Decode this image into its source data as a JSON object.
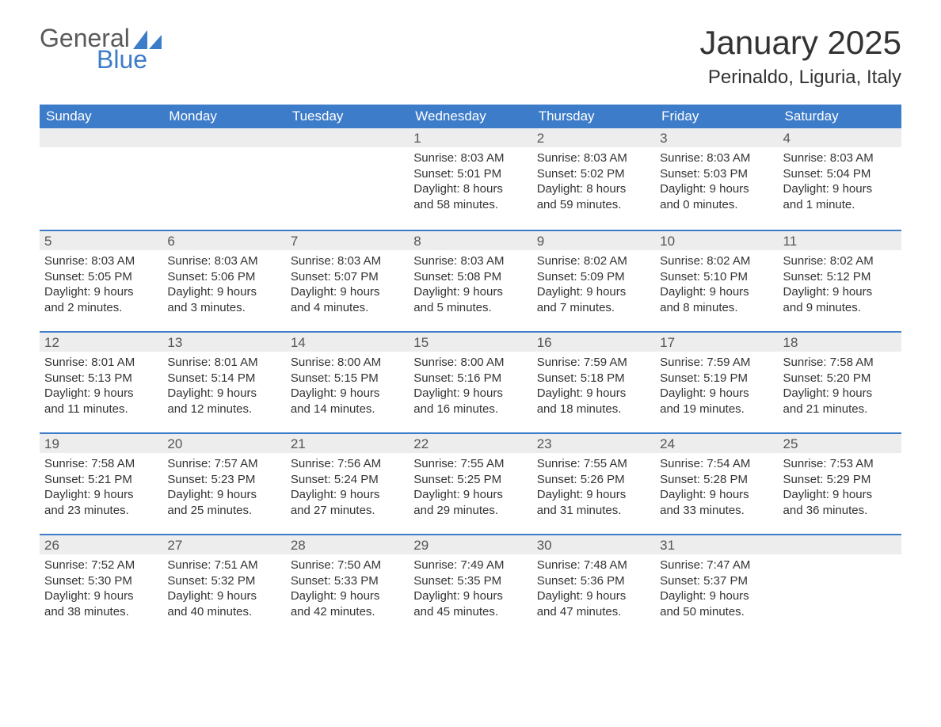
{
  "logo": {
    "text1": "General",
    "text2": "Blue",
    "sail_color": "#3d7cc9",
    "text1_color": "#5a5a5a",
    "text2_color": "#3d7cc9"
  },
  "title": "January 2025",
  "location": "Perinaldo, Liguria, Italy",
  "header_bg": "#3d7cc9",
  "header_text_color": "#ffffff",
  "daynum_bg": "#ededed",
  "week_border_color": "#3d7cc9",
  "background_color": "#ffffff",
  "text_color": "#333333",
  "weekdays": [
    "Sunday",
    "Monday",
    "Tuesday",
    "Wednesday",
    "Thursday",
    "Friday",
    "Saturday"
  ],
  "weeks": [
    [
      null,
      null,
      null,
      {
        "n": "1",
        "sunrise": "Sunrise: 8:03 AM",
        "sunset": "Sunset: 5:01 PM",
        "d1": "Daylight: 8 hours",
        "d2": "and 58 minutes."
      },
      {
        "n": "2",
        "sunrise": "Sunrise: 8:03 AM",
        "sunset": "Sunset: 5:02 PM",
        "d1": "Daylight: 8 hours",
        "d2": "and 59 minutes."
      },
      {
        "n": "3",
        "sunrise": "Sunrise: 8:03 AM",
        "sunset": "Sunset: 5:03 PM",
        "d1": "Daylight: 9 hours",
        "d2": "and 0 minutes."
      },
      {
        "n": "4",
        "sunrise": "Sunrise: 8:03 AM",
        "sunset": "Sunset: 5:04 PM",
        "d1": "Daylight: 9 hours",
        "d2": "and 1 minute."
      }
    ],
    [
      {
        "n": "5",
        "sunrise": "Sunrise: 8:03 AM",
        "sunset": "Sunset: 5:05 PM",
        "d1": "Daylight: 9 hours",
        "d2": "and 2 minutes."
      },
      {
        "n": "6",
        "sunrise": "Sunrise: 8:03 AM",
        "sunset": "Sunset: 5:06 PM",
        "d1": "Daylight: 9 hours",
        "d2": "and 3 minutes."
      },
      {
        "n": "7",
        "sunrise": "Sunrise: 8:03 AM",
        "sunset": "Sunset: 5:07 PM",
        "d1": "Daylight: 9 hours",
        "d2": "and 4 minutes."
      },
      {
        "n": "8",
        "sunrise": "Sunrise: 8:03 AM",
        "sunset": "Sunset: 5:08 PM",
        "d1": "Daylight: 9 hours",
        "d2": "and 5 minutes."
      },
      {
        "n": "9",
        "sunrise": "Sunrise: 8:02 AM",
        "sunset": "Sunset: 5:09 PM",
        "d1": "Daylight: 9 hours",
        "d2": "and 7 minutes."
      },
      {
        "n": "10",
        "sunrise": "Sunrise: 8:02 AM",
        "sunset": "Sunset: 5:10 PM",
        "d1": "Daylight: 9 hours",
        "d2": "and 8 minutes."
      },
      {
        "n": "11",
        "sunrise": "Sunrise: 8:02 AM",
        "sunset": "Sunset: 5:12 PM",
        "d1": "Daylight: 9 hours",
        "d2": "and 9 minutes."
      }
    ],
    [
      {
        "n": "12",
        "sunrise": "Sunrise: 8:01 AM",
        "sunset": "Sunset: 5:13 PM",
        "d1": "Daylight: 9 hours",
        "d2": "and 11 minutes."
      },
      {
        "n": "13",
        "sunrise": "Sunrise: 8:01 AM",
        "sunset": "Sunset: 5:14 PM",
        "d1": "Daylight: 9 hours",
        "d2": "and 12 minutes."
      },
      {
        "n": "14",
        "sunrise": "Sunrise: 8:00 AM",
        "sunset": "Sunset: 5:15 PM",
        "d1": "Daylight: 9 hours",
        "d2": "and 14 minutes."
      },
      {
        "n": "15",
        "sunrise": "Sunrise: 8:00 AM",
        "sunset": "Sunset: 5:16 PM",
        "d1": "Daylight: 9 hours",
        "d2": "and 16 minutes."
      },
      {
        "n": "16",
        "sunrise": "Sunrise: 7:59 AM",
        "sunset": "Sunset: 5:18 PM",
        "d1": "Daylight: 9 hours",
        "d2": "and 18 minutes."
      },
      {
        "n": "17",
        "sunrise": "Sunrise: 7:59 AM",
        "sunset": "Sunset: 5:19 PM",
        "d1": "Daylight: 9 hours",
        "d2": "and 19 minutes."
      },
      {
        "n": "18",
        "sunrise": "Sunrise: 7:58 AM",
        "sunset": "Sunset: 5:20 PM",
        "d1": "Daylight: 9 hours",
        "d2": "and 21 minutes."
      }
    ],
    [
      {
        "n": "19",
        "sunrise": "Sunrise: 7:58 AM",
        "sunset": "Sunset: 5:21 PM",
        "d1": "Daylight: 9 hours",
        "d2": "and 23 minutes."
      },
      {
        "n": "20",
        "sunrise": "Sunrise: 7:57 AM",
        "sunset": "Sunset: 5:23 PM",
        "d1": "Daylight: 9 hours",
        "d2": "and 25 minutes."
      },
      {
        "n": "21",
        "sunrise": "Sunrise: 7:56 AM",
        "sunset": "Sunset: 5:24 PM",
        "d1": "Daylight: 9 hours",
        "d2": "and 27 minutes."
      },
      {
        "n": "22",
        "sunrise": "Sunrise: 7:55 AM",
        "sunset": "Sunset: 5:25 PM",
        "d1": "Daylight: 9 hours",
        "d2": "and 29 minutes."
      },
      {
        "n": "23",
        "sunrise": "Sunrise: 7:55 AM",
        "sunset": "Sunset: 5:26 PM",
        "d1": "Daylight: 9 hours",
        "d2": "and 31 minutes."
      },
      {
        "n": "24",
        "sunrise": "Sunrise: 7:54 AM",
        "sunset": "Sunset: 5:28 PM",
        "d1": "Daylight: 9 hours",
        "d2": "and 33 minutes."
      },
      {
        "n": "25",
        "sunrise": "Sunrise: 7:53 AM",
        "sunset": "Sunset: 5:29 PM",
        "d1": "Daylight: 9 hours",
        "d2": "and 36 minutes."
      }
    ],
    [
      {
        "n": "26",
        "sunrise": "Sunrise: 7:52 AM",
        "sunset": "Sunset: 5:30 PM",
        "d1": "Daylight: 9 hours",
        "d2": "and 38 minutes."
      },
      {
        "n": "27",
        "sunrise": "Sunrise: 7:51 AM",
        "sunset": "Sunset: 5:32 PM",
        "d1": "Daylight: 9 hours",
        "d2": "and 40 minutes."
      },
      {
        "n": "28",
        "sunrise": "Sunrise: 7:50 AM",
        "sunset": "Sunset: 5:33 PM",
        "d1": "Daylight: 9 hours",
        "d2": "and 42 minutes."
      },
      {
        "n": "29",
        "sunrise": "Sunrise: 7:49 AM",
        "sunset": "Sunset: 5:35 PM",
        "d1": "Daylight: 9 hours",
        "d2": "and 45 minutes."
      },
      {
        "n": "30",
        "sunrise": "Sunrise: 7:48 AM",
        "sunset": "Sunset: 5:36 PM",
        "d1": "Daylight: 9 hours",
        "d2": "and 47 minutes."
      },
      {
        "n": "31",
        "sunrise": "Sunrise: 7:47 AM",
        "sunset": "Sunset: 5:37 PM",
        "d1": "Daylight: 9 hours",
        "d2": "and 50 minutes."
      },
      null
    ]
  ]
}
